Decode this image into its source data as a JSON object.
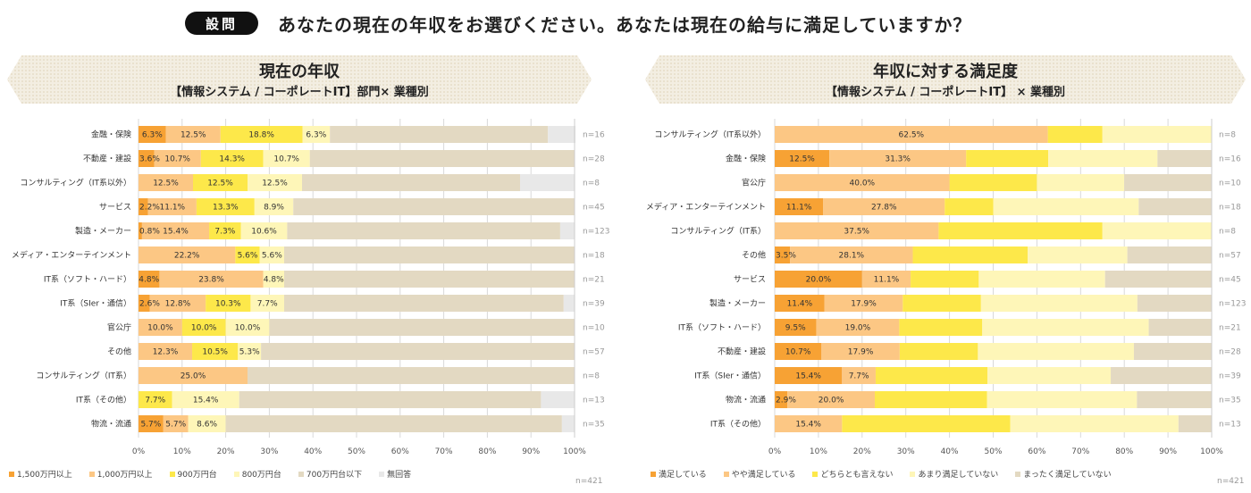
{
  "question": {
    "badge": "設問",
    "text": "あなたの現在の年収をお選びください。あなたは現在の給与に満足していますか？"
  },
  "chart_data": [
    {
      "type": "bar",
      "orientation": "horizontal-stacked-100",
      "title": "現在の年収",
      "subtitle": "【情報システム / コーポレートIT】部門× 業種別",
      "xlabel": "",
      "ylabel": "",
      "xlim": [
        0,
        100
      ],
      "x_ticks": [
        "0%",
        "10%",
        "20%",
        "30%",
        "40%",
        "50%",
        "60%",
        "70%",
        "80%",
        "90%",
        "100%"
      ],
      "grid": true,
      "legend_position": "bottom-left",
      "total_n": "n=421",
      "series_names": [
        "1,500万円以上",
        "1,000万円以上",
        "900万円台",
        "800万円台",
        "700万円台以下",
        "無回答"
      ],
      "series_colors": [
        "#F7A234",
        "#FCC784",
        "#FDE84A",
        "#FEF6B8",
        "#E3D9C2",
        "#E8E8E8"
      ],
      "label_series": [
        0,
        1,
        2,
        3
      ],
      "categories": [
        "金融・保険",
        "不動産・建設",
        "コンサルティング（IT系以外）",
        "サービス",
        "製造・メーカー",
        "メディア・エンターテインメント",
        "IT系（ソフト・ハード）",
        "IT系（SIer・通信）",
        "官公庁",
        "その他",
        "コンサルティング（IT系）",
        "IT系（その他）",
        "物流・流通"
      ],
      "n": [
        "n=16",
        "n=28",
        "n=8",
        "n=45",
        "n=123",
        "n=18",
        "n=21",
        "n=39",
        "n=10",
        "n=57",
        "n=8",
        "n=13",
        "n=35"
      ],
      "rows": [
        [
          6.3,
          12.5,
          18.8,
          6.3,
          50.0,
          6.3
        ],
        [
          3.6,
          10.7,
          14.3,
          10.7,
          60.7,
          0
        ],
        [
          0,
          12.5,
          12.5,
          12.5,
          50.0,
          12.5
        ],
        [
          2.2,
          11.1,
          13.3,
          8.9,
          64.4,
          0
        ],
        [
          0.8,
          15.4,
          7.3,
          10.6,
          62.6,
          3.3
        ],
        [
          0,
          22.2,
          5.6,
          5.6,
          66.7,
          0
        ],
        [
          4.8,
          23.8,
          0,
          4.8,
          66.7,
          0
        ],
        [
          2.6,
          12.8,
          10.3,
          7.7,
          64.1,
          2.6
        ],
        [
          0,
          10.0,
          10.0,
          10.0,
          70.0,
          0
        ],
        [
          0,
          12.3,
          10.5,
          5.3,
          71.9,
          0
        ],
        [
          0,
          25.0,
          0,
          0,
          75.0,
          0
        ],
        [
          0,
          0,
          7.7,
          15.4,
          69.2,
          7.7
        ],
        [
          5.7,
          5.7,
          0,
          8.6,
          77.1,
          2.9
        ]
      ],
      "labels": [
        [
          "6.3%",
          "12.5%",
          "18.8%",
          "6.3%"
        ],
        [
          "3.6%",
          "10.7%",
          "14.3%",
          "10.7%"
        ],
        [
          "",
          "12.5%",
          "12.5%",
          "12.5%"
        ],
        [
          "2.2%",
          "11.1%",
          "13.3%",
          "8.9%"
        ],
        [
          "0.8%",
          "15.4%",
          "7.3%",
          "10.6%"
        ],
        [
          "",
          "22.2%",
          "5.6%",
          "5.6%"
        ],
        [
          "4.8%",
          "23.8%",
          "",
          "4.8%"
        ],
        [
          "2.6%",
          "12.8%",
          "10.3%",
          "7.7%"
        ],
        [
          "",
          "10.0%",
          "10.0%",
          "10.0%"
        ],
        [
          "",
          "12.3%",
          "10.5%",
          "5.3%"
        ],
        [
          "",
          "25.0%",
          "",
          ""
        ],
        [
          "",
          "",
          "7.7%",
          "15.4%"
        ],
        [
          "5.7%",
          "5.7%",
          "",
          "8.6%"
        ]
      ]
    },
    {
      "type": "bar",
      "orientation": "horizontal-stacked-100",
      "title": "年収に対する満足度",
      "subtitle": "【情報システム / コーポレートIT】 × 業種別",
      "xlabel": "",
      "ylabel": "",
      "xlim": [
        0,
        100
      ],
      "x_ticks": [
        "0%",
        "10%",
        "20%",
        "30%",
        "40%",
        "50%",
        "60%",
        "70%",
        "80%",
        "90%",
        "100%"
      ],
      "grid": true,
      "legend_position": "bottom-left",
      "total_n": "n=421",
      "series_names": [
        "満足している",
        "やや満足している",
        "どちらとも言えない",
        "あまり満足していない",
        "まったく満足していない"
      ],
      "series_colors": [
        "#F7A234",
        "#FCC784",
        "#FDE84A",
        "#FEF6B8",
        "#E3D9C2"
      ],
      "label_series": [
        0,
        1
      ],
      "categories": [
        "コンサルティング（IT系以外）",
        "金融・保険",
        "官公庁",
        "メディア・エンターテインメント",
        "コンサルティング（IT系）",
        "その他",
        "サービス",
        "製造・メーカー",
        "IT系（ソフト・ハード）",
        "不動産・建設",
        "IT系（SIer・通信）",
        "物流・流通",
        "IT系（その他）"
      ],
      "n": [
        "n=8",
        "n=16",
        "n=10",
        "n=18",
        "n=8",
        "n=57",
        "n=45",
        "n=123",
        "n=21",
        "n=28",
        "n=39",
        "n=35",
        "n=13"
      ],
      "rows": [
        [
          0,
          62.5,
          12.5,
          25.0,
          0
        ],
        [
          12.5,
          31.3,
          18.8,
          25.0,
          12.5
        ],
        [
          0,
          40.0,
          20.0,
          20.0,
          20.0
        ],
        [
          11.1,
          27.8,
          11.1,
          33.3,
          16.7
        ],
        [
          0,
          37.5,
          37.5,
          25.0,
          0
        ],
        [
          3.5,
          28.1,
          26.3,
          22.8,
          19.3
        ],
        [
          20.0,
          11.1,
          15.6,
          28.9,
          24.4
        ],
        [
          11.4,
          17.9,
          17.9,
          35.8,
          17.1
        ],
        [
          9.5,
          19.0,
          19.0,
          38.1,
          14.3
        ],
        [
          10.7,
          17.9,
          17.9,
          35.7,
          17.9
        ],
        [
          15.4,
          7.7,
          25.6,
          28.2,
          23.1
        ],
        [
          2.9,
          20.0,
          25.7,
          34.3,
          17.1
        ],
        [
          0,
          15.4,
          38.5,
          38.5,
          7.7
        ]
      ],
      "labels": [
        [
          "",
          "62.5%"
        ],
        [
          "12.5%",
          "31.3%"
        ],
        [
          "",
          "40.0%"
        ],
        [
          "11.1%",
          "27.8%"
        ],
        [
          "",
          "37.5%"
        ],
        [
          "3.5%",
          "28.1%"
        ],
        [
          "20.0%",
          "11.1%"
        ],
        [
          "11.4%",
          "17.9%"
        ],
        [
          "9.5%",
          "19.0%"
        ],
        [
          "10.7%",
          "17.9%"
        ],
        [
          "15.4%",
          "7.7%"
        ],
        [
          "2.9%",
          "20.0%"
        ],
        [
          "",
          "15.4%"
        ]
      ]
    }
  ]
}
